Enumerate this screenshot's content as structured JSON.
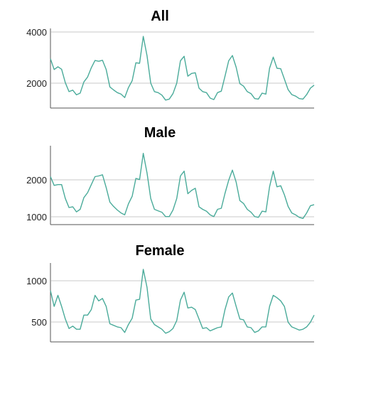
{
  "colors": {
    "line": "#4aab9a",
    "grid": "#c8c8c8",
    "axis": "#555555"
  },
  "chart_data": [
    {
      "type": "line",
      "title": "All",
      "xlabel": "",
      "ylabel": "",
      "ylim": [
        1000,
        4200
      ],
      "yticks": [
        2000,
        4000
      ],
      "grid": true,
      "series": [
        {
          "values": [
            2980,
            2550,
            2660,
            2560,
            2020,
            1660,
            1720,
            1530,
            1600,
            2050,
            2250,
            2620,
            2910,
            2880,
            2920,
            2550,
            1850,
            1730,
            1620,
            1560,
            1420,
            1820,
            2100,
            2820,
            2800,
            3880,
            3100,
            2000,
            1660,
            1620,
            1520,
            1320,
            1360,
            1580,
            2000,
            2900,
            3080,
            2280,
            2390,
            2420,
            1800,
            1660,
            1620,
            1400,
            1340,
            1620,
            1680,
            2280,
            2900,
            3110,
            2640,
            1980,
            1880,
            1660,
            1580,
            1380,
            1360,
            1600,
            1560,
            2600,
            3050,
            2600,
            2580,
            2160,
            1740,
            1540,
            1480,
            1380,
            1360,
            1540,
            1800,
            1920
          ]
        }
      ]
    },
    {
      "type": "line",
      "title": "Male",
      "xlabel": "",
      "ylabel": "",
      "ylim": [
        780,
        2950
      ],
      "yticks": [
        1000,
        2000
      ],
      "grid": true,
      "series": [
        {
          "values": [
            2100,
            1860,
            1880,
            1880,
            1500,
            1250,
            1270,
            1130,
            1200,
            1520,
            1660,
            1880,
            2100,
            2120,
            2150,
            1800,
            1400,
            1280,
            1180,
            1100,
            1050,
            1350,
            1560,
            2050,
            2020,
            2740,
            2200,
            1500,
            1200,
            1160,
            1120,
            1000,
            1000,
            1180,
            1500,
            2120,
            2250,
            1630,
            1720,
            1780,
            1270,
            1200,
            1150,
            1050,
            1000,
            1200,
            1230,
            1640,
            2000,
            2280,
            1950,
            1440,
            1360,
            1200,
            1120,
            1000,
            980,
            1150,
            1130,
            1820,
            2250,
            1820,
            1850,
            1600,
            1280,
            1100,
            1050,
            980,
            950,
            1100,
            1300,
            1330
          ]
        }
      ]
    },
    {
      "type": "line",
      "title": "Female",
      "xlabel": "",
      "ylabel": "",
      "ylim": [
        230,
        1230
      ],
      "yticks": [
        500,
        1000
      ],
      "grid": true,
      "series": [
        {
          "values": [
            880,
            680,
            820,
            680,
            520,
            400,
            430,
            390,
            390,
            570,
            570,
            640,
            820,
            750,
            780,
            680,
            460,
            440,
            420,
            410,
            350,
            450,
            530,
            760,
            770,
            1150,
            920,
            520,
            450,
            420,
            390,
            340,
            360,
            400,
            500,
            760,
            860,
            660,
            670,
            640,
            520,
            400,
            410,
            370,
            390,
            410,
            420,
            640,
            800,
            850,
            680,
            520,
            510,
            420,
            410,
            350,
            370,
            420,
            420,
            680,
            820,
            790,
            750,
            680,
            480,
            420,
            400,
            380,
            390,
            420,
            480,
            570
          ]
        }
      ]
    }
  ]
}
